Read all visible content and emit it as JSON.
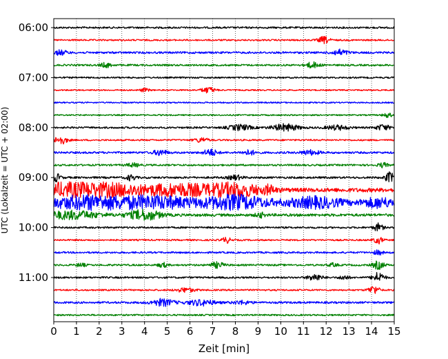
{
  "chart_data": {
    "type": "line",
    "title": "",
    "xlabel": "Zeit  [min]",
    "ylabel": "UTC (Lokalzeit = UTC + 02:00)",
    "xlim": [
      0,
      15
    ],
    "x_ticks": [
      "0",
      "1",
      "2",
      "3",
      "4",
      "5",
      "6",
      "7",
      "8",
      "9",
      "10",
      "11",
      "12",
      "13",
      "14",
      "15"
    ],
    "y_ticks": [
      "06:00",
      "07:00",
      "08:00",
      "09:00",
      "10:00",
      "11:00"
    ],
    "y_tick_rows": [
      0,
      4,
      8,
      12,
      16,
      20
    ],
    "row_minutes": 15,
    "grid": "vertical dotted at every minute",
    "legend": "none",
    "colors": [
      "#000000",
      "#ff0000",
      "#0000ff",
      "#008000"
    ],
    "traces": [
      {
        "start": "06:00",
        "color": "#000000",
        "level": 0.8,
        "bursts": []
      },
      {
        "start": "06:15",
        "color": "#ff0000",
        "level": 0.7,
        "bursts": [
          [
            11.9,
            0.25,
            3.0
          ]
        ]
      },
      {
        "start": "06:30",
        "color": "#0000ff",
        "level": 0.9,
        "bursts": [
          [
            0.3,
            0.3,
            2.0
          ],
          [
            12.6,
            0.35,
            2.5
          ]
        ]
      },
      {
        "start": "06:45",
        "color": "#008000",
        "level": 0.8,
        "bursts": [
          [
            2.3,
            0.25,
            2.0
          ],
          [
            11.4,
            0.3,
            2.5
          ]
        ]
      },
      {
        "start": "07:00",
        "color": "#000000",
        "level": 0.7,
        "bursts": []
      },
      {
        "start": "07:15",
        "color": "#ff0000",
        "level": 0.6,
        "bursts": [
          [
            4.0,
            0.2,
            1.5
          ],
          [
            6.8,
            0.3,
            2.5
          ]
        ]
      },
      {
        "start": "07:30",
        "color": "#0000ff",
        "level": 0.6,
        "bursts": []
      },
      {
        "start": "07:45",
        "color": "#008000",
        "level": 0.6,
        "bursts": [
          [
            14.7,
            0.2,
            2.0
          ]
        ]
      },
      {
        "start": "08:00",
        "color": "#000000",
        "level": 0.8,
        "bursts": [
          [
            8.2,
            0.5,
            2.5
          ],
          [
            10.2,
            0.6,
            3.0
          ],
          [
            12.5,
            0.5,
            2.0
          ],
          [
            14.5,
            0.3,
            2.5
          ]
        ]
      },
      {
        "start": "08:15",
        "color": "#ff0000",
        "level": 0.7,
        "bursts": [
          [
            0.3,
            0.3,
            3.5
          ],
          [
            6.5,
            0.3,
            2.0
          ]
        ]
      },
      {
        "start": "08:30",
        "color": "#0000ff",
        "level": 0.9,
        "bursts": [
          [
            4.7,
            0.3,
            2.5
          ],
          [
            6.9,
            0.3,
            3.0
          ],
          [
            8.6,
            0.3,
            2.0
          ],
          [
            11.3,
            0.4,
            2.0
          ]
        ]
      },
      {
        "start": "08:45",
        "color": "#008000",
        "level": 0.8,
        "bursts": [
          [
            3.5,
            0.3,
            1.5
          ],
          [
            14.5,
            0.2,
            2.0
          ]
        ]
      },
      {
        "start": "09:00",
        "color": "#000000",
        "level": 0.9,
        "bursts": [
          [
            0.1,
            0.2,
            3.5
          ],
          [
            3.4,
            0.2,
            2.5
          ],
          [
            8.0,
            0.3,
            2.0
          ],
          [
            14.8,
            0.2,
            4.5
          ]
        ]
      },
      {
        "start": "09:15",
        "color": "#ff0000",
        "level": 1.8,
        "bursts": [
          [
            0.3,
            1.4,
            5.0
          ],
          [
            2.5,
            1.5,
            5.0
          ],
          [
            5.5,
            1.5,
            5.0
          ],
          [
            8.0,
            1.2,
            5.5
          ],
          [
            9.5,
            0.2,
            3.0
          ]
        ]
      },
      {
        "start": "09:30",
        "color": "#0000ff",
        "level": 1.8,
        "bursts": [
          [
            1.4,
            1.8,
            5.5
          ],
          [
            4.5,
            1.8,
            5.0
          ],
          [
            8.0,
            1.4,
            6.0
          ],
          [
            11.5,
            1.2,
            4.5
          ],
          [
            14.3,
            0.7,
            4.0
          ]
        ]
      },
      {
        "start": "09:45",
        "color": "#008000",
        "level": 1.2,
        "bursts": [
          [
            0.8,
            1.2,
            3.5
          ],
          [
            4.0,
            0.7,
            4.5
          ],
          [
            9.1,
            0.2,
            2.0
          ]
        ]
      },
      {
        "start": "10:00",
        "color": "#000000",
        "level": 0.8,
        "bursts": [
          [
            14.3,
            0.2,
            3.5
          ]
        ]
      },
      {
        "start": "10:15",
        "color": "#ff0000",
        "level": 0.7,
        "bursts": [
          [
            7.6,
            0.2,
            2.5
          ],
          [
            14.3,
            0.2,
            3.0
          ]
        ]
      },
      {
        "start": "10:30",
        "color": "#0000ff",
        "level": 0.8,
        "bursts": [
          [
            14.3,
            0.2,
            2.0
          ]
        ]
      },
      {
        "start": "10:45",
        "color": "#008000",
        "level": 0.8,
        "bursts": [
          [
            1.2,
            0.2,
            1.5
          ],
          [
            4.8,
            0.2,
            2.0
          ],
          [
            7.2,
            0.3,
            2.5
          ],
          [
            12.3,
            0.2,
            1.5
          ],
          [
            14.3,
            0.25,
            3.5
          ]
        ]
      },
      {
        "start": "11:00",
        "color": "#000000",
        "level": 0.8,
        "bursts": [
          [
            11.5,
            0.3,
            3.0
          ],
          [
            12.8,
            0.2,
            2.0
          ],
          [
            14.3,
            0.25,
            4.5
          ]
        ]
      },
      {
        "start": "11:15",
        "color": "#ff0000",
        "level": 0.7,
        "bursts": [
          [
            5.8,
            0.4,
            2.0
          ],
          [
            14.1,
            0.25,
            3.5
          ]
        ]
      },
      {
        "start": "11:30",
        "color": "#0000ff",
        "level": 0.9,
        "bursts": [
          [
            4.8,
            0.5,
            3.0
          ],
          [
            6.5,
            0.6,
            2.5
          ],
          [
            8.3,
            0.4,
            1.5
          ]
        ]
      },
      {
        "start": "11:45",
        "color": "#008000",
        "level": 0.7,
        "bursts": []
      }
    ]
  }
}
